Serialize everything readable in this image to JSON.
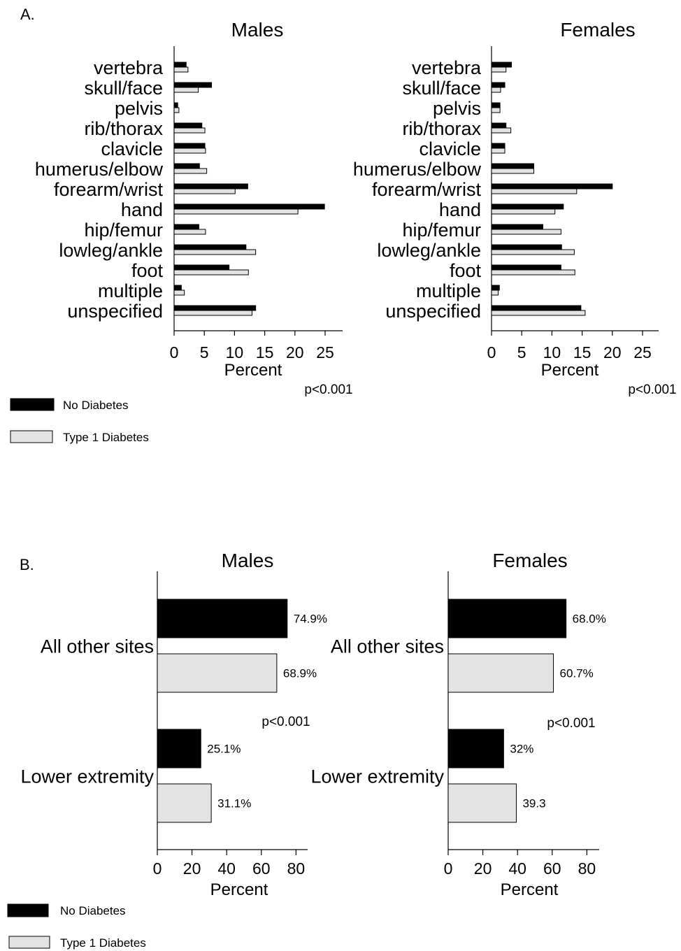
{
  "colors": {
    "no_diabetes": "#000000",
    "type1_diabetes": "#e3e3e3",
    "bar_stroke": "#000000"
  },
  "panels": {
    "a_label": "A.",
    "b_label": "B."
  },
  "legend": {
    "no_diabetes": "No Diabetes",
    "type1_diabetes": "Type 1 Diabetes"
  },
  "chart_data": [
    {
      "type": "bar",
      "orientation": "horizontal",
      "panel": "A",
      "title": "Males",
      "xlabel": "Percent",
      "ylabel": "",
      "xlim": [
        0,
        27
      ],
      "xticks": [
        0,
        5,
        10,
        15,
        20,
        25
      ],
      "pvalue": "p<0.001",
      "categories": [
        "vertebra",
        "skull/face",
        "pelvis",
        "rib/thorax",
        "clavicle",
        "humerus/elbow",
        "forearm/wrist",
        "hand",
        "hip/femur",
        "lowleg/ankle",
        "foot",
        "multiple",
        "unspecified"
      ],
      "series": [
        {
          "name": "No Diabetes",
          "values": [
            2.0,
            6.2,
            0.6,
            4.6,
            5.1,
            4.2,
            12.2,
            24.9,
            4.1,
            11.9,
            9.1,
            1.2,
            13.5
          ]
        },
        {
          "name": "Type 1 Diabetes",
          "values": [
            2.3,
            4.0,
            0.8,
            5.1,
            5.2,
            5.4,
            10.1,
            20.5,
            5.2,
            13.5,
            12.3,
            1.7,
            12.9
          ]
        }
      ]
    },
    {
      "type": "bar",
      "orientation": "horizontal",
      "panel": "A",
      "title": "Females",
      "xlabel": "Percent",
      "ylabel": "",
      "xlim": [
        0,
        27
      ],
      "xticks": [
        0,
        5,
        10,
        15,
        20,
        25
      ],
      "pvalue": "p<0.001",
      "categories": [
        "vertebra",
        "skull/face",
        "pelvis",
        "rib/thorax",
        "clavicle",
        "humerus/elbow",
        "forearm/wrist",
        "hand",
        "hip/femur",
        "lowleg/ankle",
        "foot",
        "multiple",
        "unspecified"
      ],
      "series": [
        {
          "name": "No Diabetes",
          "values": [
            3.3,
            2.2,
            1.4,
            2.4,
            2.2,
            7.0,
            20.0,
            11.9,
            8.5,
            11.6,
            11.5,
            1.3,
            14.8
          ]
        },
        {
          "name": "Type 1 Diabetes",
          "values": [
            2.4,
            1.5,
            1.4,
            3.2,
            2.2,
            7.0,
            14.1,
            10.5,
            11.5,
            13.7,
            13.8,
            1.1,
            15.5
          ]
        }
      ]
    },
    {
      "type": "bar",
      "orientation": "horizontal",
      "panel": "B",
      "title": "Males",
      "xlabel": "Percent",
      "ylabel": "",
      "xlim": [
        0,
        86
      ],
      "xticks": [
        0,
        20,
        40,
        60,
        80
      ],
      "pvalue": "p<0.001",
      "categories": [
        "All other sites",
        "Lower extremity"
      ],
      "series": [
        {
          "name": "No Diabetes",
          "values": [
            74.9,
            25.1
          ],
          "labels": [
            "74.9%",
            "25.1%"
          ]
        },
        {
          "name": "Type 1 Diabetes",
          "values": [
            68.9,
            31.1
          ],
          "labels": [
            "68.9%",
            "31.1%"
          ]
        }
      ]
    },
    {
      "type": "bar",
      "orientation": "horizontal",
      "panel": "B",
      "title": "Females",
      "xlabel": "Percent",
      "ylabel": "",
      "xlim": [
        0,
        86
      ],
      "xticks": [
        0,
        20,
        40,
        60,
        80
      ],
      "pvalue": "p<0.001",
      "categories": [
        "All other sites",
        "Lower extremity"
      ],
      "series": [
        {
          "name": "No Diabetes",
          "values": [
            68.0,
            32.0
          ],
          "labels": [
            "68.0%",
            "32%"
          ]
        },
        {
          "name": "Type 1 Diabetes",
          "values": [
            60.7,
            39.3
          ],
          "labels": [
            "60.7%",
            "39.3"
          ]
        }
      ]
    }
  ]
}
